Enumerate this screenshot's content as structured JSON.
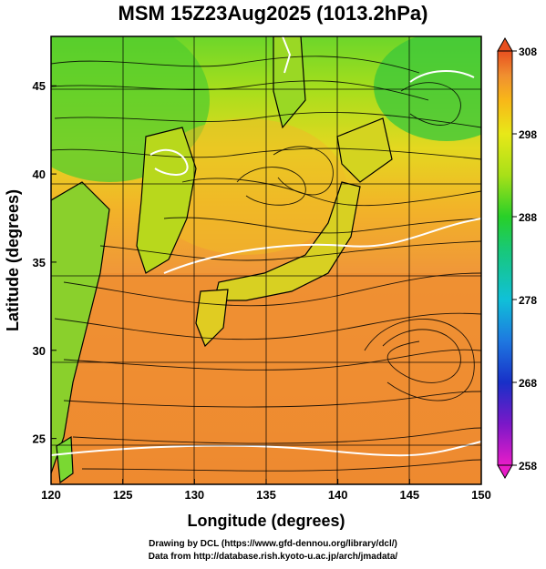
{
  "title": "MSM 15Z23Aug2025 (1013.2hPa)",
  "map": {
    "x_axis": {
      "label": "Longitude (degrees)",
      "range": [
        120,
        150
      ],
      "ticks": [
        {
          "value": 120,
          "label": "120"
        },
        {
          "value": 125,
          "label": "125"
        },
        {
          "value": 130,
          "label": "130"
        },
        {
          "value": 135,
          "label": "135"
        },
        {
          "value": 140,
          "label": "140"
        },
        {
          "value": 145,
          "label": "145"
        },
        {
          "value": 150,
          "label": "150"
        }
      ]
    },
    "y_axis": {
      "label": "Latitude  (degrees)",
      "range": [
        22.4,
        47.8
      ],
      "ticks": [
        {
          "value": 25,
          "label": "25"
        },
        {
          "value": 30,
          "label": "30"
        },
        {
          "value": 35,
          "label": "35"
        },
        {
          "value": 40,
          "label": "40"
        },
        {
          "value": 45,
          "label": "45"
        }
      ]
    },
    "grid": true,
    "fields": [
      "temperature shading",
      "wind streamlines",
      "coastlines",
      "white contours"
    ]
  },
  "colorbar": {
    "range": [
      258,
      308
    ],
    "ticks": [
      {
        "value": 308,
        "label": "308"
      },
      {
        "value": 298,
        "label": "298"
      },
      {
        "value": 288,
        "label": "288"
      },
      {
        "value": 278,
        "label": "278"
      },
      {
        "value": 268,
        "label": "268"
      },
      {
        "value": 258,
        "label": "258"
      }
    ],
    "colors": [
      "#e81cc8",
      "#7a18c8",
      "#1830c8",
      "#1e78e0",
      "#10c0d8",
      "#18c878",
      "#28d028",
      "#a8e018",
      "#e8e818",
      "#f8b818",
      "#f09030",
      "#e85020"
    ]
  },
  "credits": {
    "line1": "Drawing by DCL (https://www.gfd-dennou.org/library/dcl/)",
    "line2": "Data from http://database.rish.kyoto-u.ac.jp/arch/jmadata/"
  }
}
